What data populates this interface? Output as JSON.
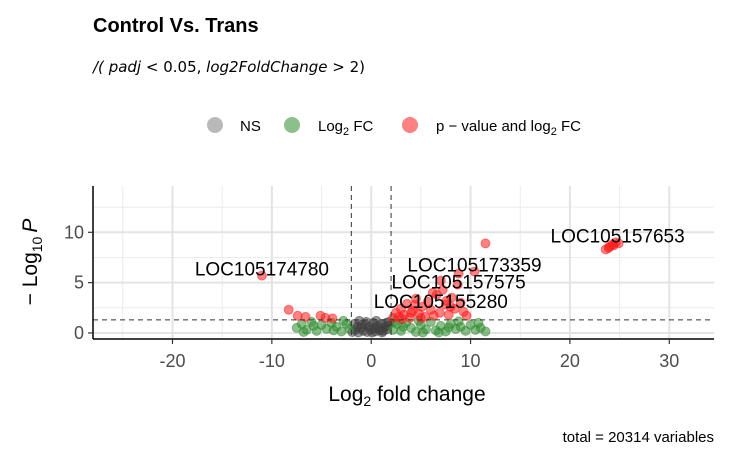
{
  "chart_data": {
    "type": "scatter",
    "title": "Control Vs. Trans",
    "subtitle": {
      "lead": "/(",
      "var1": "padj",
      "op1": "< 0.05,",
      "var2": "log2FoldChange",
      "op2": "> 2)"
    },
    "xlabel": {
      "base": "Log",
      "sub": "2",
      "rest": " fold change"
    },
    "ylabel": {
      "minus": "− Log",
      "sub": "10",
      "var": "P"
    },
    "caption": "total = 20314 variables",
    "xlim": [
      -28,
      34.5
    ],
    "ylim": [
      -0.6,
      14.6
    ],
    "x_ticks": [
      -20,
      -10,
      0,
      10,
      20,
      30
    ],
    "x_tick_labels": [
      "-20",
      "-10",
      "0",
      "10",
      "20",
      "30"
    ],
    "y_ticks": [
      0,
      5,
      10
    ],
    "y_tick_labels": [
      "0",
      "5",
      "10"
    ],
    "fc_cutoff": 2,
    "p_cutoff_neglog10": 1.3,
    "grid": true,
    "legend_position": "top",
    "legend": [
      {
        "key": "NS",
        "label": {
          "text": "NS"
        },
        "color": "#808080"
      },
      {
        "key": "FC",
        "label": {
          "base": "Log",
          "sub": "2",
          "rest": " FC"
        },
        "color": "#2e8b2e"
      },
      {
        "key": "PFC",
        "label": {
          "base": "p − value and log",
          "sub": "2",
          "rest": " FC"
        },
        "color": "#ff1a1a"
      }
    ],
    "series": [
      {
        "name": "NS",
        "color": "#404040",
        "points": [
          [
            -1.9,
            0.1
          ],
          [
            -1.6,
            0.3
          ],
          [
            -1.3,
            0.05
          ],
          [
            -1.0,
            0.5
          ],
          [
            -0.8,
            0.2
          ],
          [
            -0.6,
            0.8
          ],
          [
            -0.4,
            0.1
          ],
          [
            -0.2,
            0.6
          ],
          [
            0.0,
            0.3
          ],
          [
            0.2,
            1.0
          ],
          [
            0.4,
            0.15
          ],
          [
            0.6,
            0.7
          ],
          [
            0.8,
            0.4
          ],
          [
            1.0,
            0.9
          ],
          [
            1.2,
            0.2
          ],
          [
            1.4,
            0.6
          ],
          [
            1.6,
            0.35
          ],
          [
            1.8,
            1.1
          ],
          [
            -1.7,
            0.9
          ],
          [
            -1.2,
            1.2
          ],
          [
            -0.5,
            1.1
          ],
          [
            0.1,
            0.05
          ],
          [
            0.5,
            1.2
          ],
          [
            1.1,
            0.05
          ],
          [
            1.5,
            1.0
          ],
          [
            -1.4,
            0.6
          ],
          [
            -0.9,
            0.85
          ],
          [
            0.3,
            0.45
          ],
          [
            0.9,
            0.25
          ],
          [
            1.7,
            0.7
          ]
        ]
      },
      {
        "name": "Log2 FC",
        "color": "#2e8b2e",
        "points": [
          [
            -7.5,
            0.5
          ],
          [
            -7.0,
            0.9
          ],
          [
            -6.5,
            0.3
          ],
          [
            -6.0,
            1.1
          ],
          [
            -5.5,
            0.2
          ],
          [
            -5.0,
            0.8
          ],
          [
            -4.5,
            0.4
          ],
          [
            -4.0,
            1.0
          ],
          [
            -3.5,
            0.6
          ],
          [
            -3.0,
            0.15
          ],
          [
            -2.5,
            0.9
          ],
          [
            -2.2,
            0.4
          ],
          [
            -6.8,
            0.1
          ],
          [
            -5.8,
            0.7
          ],
          [
            -3.8,
            0.25
          ],
          [
            -2.8,
            1.2
          ],
          [
            2.2,
            0.3
          ],
          [
            2.6,
            0.9
          ],
          [
            3.0,
            0.2
          ],
          [
            3.5,
            1.0
          ],
          [
            4.0,
            0.5
          ],
          [
            4.5,
            0.1
          ],
          [
            5.0,
            0.8
          ],
          [
            5.5,
            0.35
          ],
          [
            6.0,
            1.1
          ],
          [
            6.5,
            0.25
          ],
          [
            7.0,
            0.7
          ],
          [
            7.5,
            0.15
          ],
          [
            8.0,
            0.9
          ],
          [
            8.5,
            0.4
          ],
          [
            9.0,
            0.6
          ],
          [
            9.5,
            0.2
          ],
          [
            10.0,
            0.8
          ],
          [
            10.5,
            0.3
          ],
          [
            11.0,
            0.5
          ],
          [
            11.5,
            0.15
          ],
          [
            10.8,
            1.0
          ],
          [
            3.2,
            0.6
          ],
          [
            4.8,
            1.2
          ],
          [
            6.8,
            0.05
          ],
          [
            8.8,
            1.15
          ],
          [
            2.4,
            1.15
          ],
          [
            5.2,
            0.05
          ],
          [
            7.8,
            0.55
          ]
        ]
      },
      {
        "name": "p-value and log2 FC",
        "color": "#ff1a1a",
        "points": [
          [
            -11.0,
            5.7
          ],
          [
            -8.3,
            2.3
          ],
          [
            -7.4,
            1.7
          ],
          [
            -6.6,
            1.6
          ],
          [
            -5.1,
            1.7
          ],
          [
            -4.6,
            1.5
          ],
          [
            -3.9,
            1.45
          ],
          [
            2.2,
            1.5
          ],
          [
            2.5,
            2.0
          ],
          [
            2.8,
            1.6
          ],
          [
            3.0,
            2.4
          ],
          [
            3.3,
            1.8
          ],
          [
            3.6,
            2.9
          ],
          [
            3.9,
            1.5
          ],
          [
            4.2,
            2.2
          ],
          [
            4.5,
            3.4
          ],
          [
            4.8,
            1.9
          ],
          [
            5.1,
            2.6
          ],
          [
            5.4,
            1.6
          ],
          [
            5.7,
            3.1
          ],
          [
            6.0,
            2.3
          ],
          [
            6.3,
            1.7
          ],
          [
            6.6,
            3.8
          ],
          [
            6.9,
            2.0
          ],
          [
            7.2,
            4.3
          ],
          [
            7.5,
            2.8
          ],
          [
            7.8,
            1.8
          ],
          [
            8.1,
            3.5
          ],
          [
            8.4,
            2.4
          ],
          [
            8.7,
            4.8
          ],
          [
            9.0,
            3.0
          ],
          [
            9.3,
            2.1
          ],
          [
            9.6,
            1.7
          ],
          [
            7.0,
            5.2
          ],
          [
            8.8,
            5.9
          ],
          [
            10.4,
            6.1
          ],
          [
            11.5,
            8.9
          ],
          [
            4.0,
            2.0
          ],
          [
            5.0,
            1.5
          ],
          [
            6.2,
            4.0
          ],
          [
            7.6,
            3.2
          ],
          [
            8.0,
            2.6
          ],
          [
            4.4,
            2.8
          ],
          [
            3.1,
            1.4
          ],
          [
            23.6,
            8.3
          ],
          [
            24.0,
            8.6
          ],
          [
            24.3,
            8.8
          ],
          [
            24.6,
            9.0
          ],
          [
            24.9,
            8.9
          ],
          [
            23.9,
            8.45
          ],
          [
            24.4,
            8.7
          ]
        ]
      }
    ],
    "annotations": [
      {
        "text": "LOC105157653",
        "x": 24.8,
        "y": 9.0
      },
      {
        "text": "LOC105174780",
        "x": -11.0,
        "y": 5.7
      },
      {
        "text": "LOC105173359",
        "x": 10.4,
        "y": 6.1
      },
      {
        "text": "LOC105157575",
        "x": 8.8,
        "y": 4.4
      },
      {
        "text": "LOC105155280",
        "x": 7.0,
        "y": 2.5
      }
    ]
  }
}
